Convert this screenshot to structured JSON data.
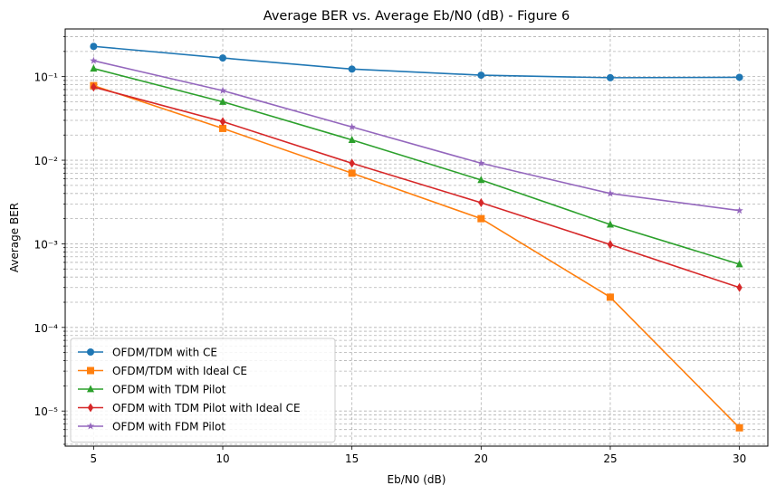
{
  "chart_data": {
    "type": "line",
    "title": "Average BER vs. Average Eb/N0 (dB) - Figure 6",
    "xlabel": "Eb/N0 (dB)",
    "ylabel": "Average BER",
    "yscale": "log",
    "xlim": [
      3.9,
      31.1
    ],
    "ylim_log10": [
      -5.42,
      -0.43
    ],
    "xticks": [
      5,
      10,
      15,
      20,
      25,
      30
    ],
    "yticks": [
      {
        "exp": -5,
        "label": "10⁻⁵"
      },
      {
        "exp": -4,
        "label": "10⁻⁴"
      },
      {
        "exp": -3,
        "label": "10⁻³"
      },
      {
        "exp": -2,
        "label": "10⁻²"
      },
      {
        "exp": -1,
        "label": "10⁻¹"
      }
    ],
    "grid": true,
    "legend_position": "lower-left",
    "x": [
      5,
      10,
      15,
      20,
      25,
      30
    ],
    "series": [
      {
        "name": "OFDM/TDM with CE",
        "color": "#1f77b4",
        "marker": "circle",
        "values": [
          0.23,
          0.167,
          0.123,
          0.104,
          0.097,
          0.098
        ]
      },
      {
        "name": "OFDM/TDM with Ideal CE",
        "color": "#ff7f0e",
        "marker": "square",
        "values": [
          0.078,
          0.024,
          0.007,
          0.002,
          0.00023,
          6.3e-06
        ]
      },
      {
        "name": "OFDM with TDM Pilot",
        "color": "#2ca02c",
        "marker": "triangle",
        "values": [
          0.125,
          0.05,
          0.0175,
          0.0058,
          0.0017,
          0.00057
        ]
      },
      {
        "name": "OFDM with TDM Pilot with Ideal CE",
        "color": "#d62728",
        "marker": "diamond",
        "values": [
          0.075,
          0.029,
          0.0092,
          0.0031,
          0.00098,
          0.0003
        ]
      },
      {
        "name": "OFDM with FDM Pilot",
        "color": "#9467bd",
        "marker": "star",
        "values": [
          0.155,
          0.068,
          0.025,
          0.0092,
          0.004,
          0.0025
        ]
      }
    ]
  }
}
